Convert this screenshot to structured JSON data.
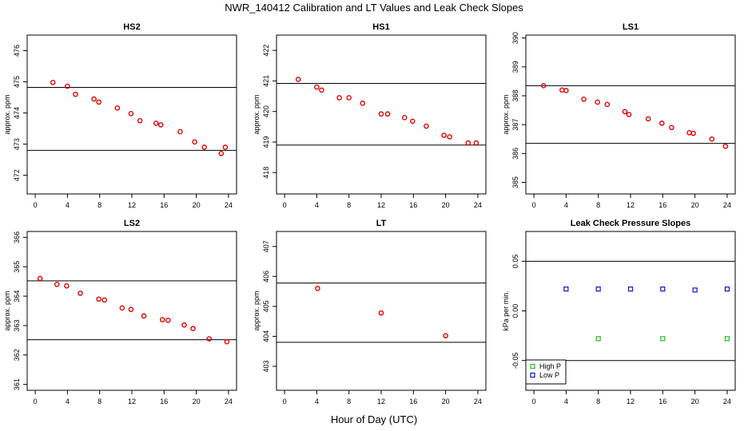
{
  "title": "NWR_140412  Calibration and LT Values and Leak Check Slopes",
  "xlabel": "Hour of Day (UTC)",
  "colors": {
    "calibration_points": "#dd0000",
    "high_p": "#22bb22",
    "low_p": "#1111cc",
    "axis": "#000000"
  },
  "chart_data": [
    {
      "type": "scatter",
      "title": "HS2",
      "ylabel": "approx. ppm",
      "xlim": [
        -1,
        25
      ],
      "xticks": [
        0,
        4,
        8,
        12,
        16,
        20,
        24
      ],
      "ylim": [
        471.4,
        476.5
      ],
      "yticks": [
        472,
        473,
        474,
        475,
        476
      ],
      "hlines": [
        474.82,
        472.8
      ],
      "series": [
        {
          "x": [
            2.2,
            4.0,
            5.0,
            7.3,
            7.9,
            10.2,
            11.9,
            13.0,
            15.0,
            15.6,
            18.0,
            19.8,
            21.0,
            23.1,
            23.6
          ],
          "y": [
            474.98,
            474.86,
            474.6,
            474.45,
            474.35,
            474.16,
            473.98,
            473.75,
            473.67,
            473.62,
            473.4,
            473.07,
            472.9,
            472.7,
            472.9
          ]
        }
      ]
    },
    {
      "type": "scatter",
      "title": "HS1",
      "ylabel": "approx. ppm",
      "xlim": [
        -1,
        25
      ],
      "xticks": [
        0,
        4,
        8,
        12,
        16,
        20,
        24
      ],
      "ylim": [
        417.3,
        422.5
      ],
      "yticks": [
        418,
        419,
        420,
        421,
        422
      ],
      "hlines": [
        420.92,
        418.9
      ],
      "series": [
        {
          "x": [
            1.7,
            4.0,
            4.6,
            6.8,
            8.0,
            9.7,
            12.0,
            12.8,
            14.9,
            15.9,
            17.6,
            19.8,
            20.5,
            22.8,
            23.8
          ],
          "y": [
            421.05,
            420.8,
            420.7,
            420.45,
            420.45,
            420.27,
            419.92,
            419.92,
            419.8,
            419.68,
            419.52,
            419.22,
            419.17,
            418.97,
            418.97
          ]
        }
      ]
    },
    {
      "type": "scatter",
      "title": "LS1",
      "ylabel": "approx. ppm",
      "xlim": [
        -1,
        25
      ],
      "xticks": [
        0,
        4,
        8,
        12,
        16,
        20,
        24
      ],
      "ylim": [
        384.6,
        390.1
      ],
      "yticks": [
        385,
        386,
        387,
        388,
        389,
        390
      ],
      "hlines": [
        388.35,
        386.35
      ],
      "series": [
        {
          "x": [
            1.2,
            3.5,
            4.0,
            6.2,
            7.9,
            9.1,
            11.3,
            11.8,
            14.2,
            15.9,
            17.1,
            19.3,
            19.8,
            22.1,
            23.8
          ],
          "y": [
            388.35,
            388.2,
            388.18,
            387.88,
            387.78,
            387.7,
            387.45,
            387.35,
            387.2,
            387.05,
            386.9,
            386.72,
            386.7,
            386.5,
            386.25
          ]
        }
      ]
    },
    {
      "type": "scatter",
      "title": "LS2",
      "ylabel": "approx. ppm",
      "xlim": [
        -1,
        25
      ],
      "xticks": [
        0,
        4,
        8,
        12,
        16,
        20,
        24
      ],
      "ylim": [
        360.8,
        366.2
      ],
      "yticks": [
        361,
        362,
        363,
        364,
        365,
        366
      ],
      "hlines": [
        364.52,
        362.52
      ],
      "series": [
        {
          "x": [
            0.6,
            2.7,
            3.9,
            5.6,
            7.9,
            8.6,
            10.8,
            11.9,
            13.5,
            15.8,
            16.5,
            18.5,
            19.6,
            21.6,
            23.8
          ],
          "y": [
            364.6,
            364.4,
            364.35,
            364.1,
            363.9,
            363.87,
            363.6,
            363.55,
            363.33,
            363.2,
            363.18,
            363.02,
            362.9,
            362.55,
            362.45
          ]
        }
      ]
    },
    {
      "type": "scatter",
      "title": "LT",
      "ylabel": "approx. ppm",
      "xlim": [
        -1,
        25
      ],
      "xticks": [
        0,
        4,
        8,
        12,
        16,
        20,
        24
      ],
      "ylim": [
        402.2,
        407.5
      ],
      "yticks": [
        403,
        404,
        405,
        406,
        407
      ],
      "hlines": [
        405.78,
        403.8
      ],
      "series": [
        {
          "x": [
            4.1,
            12.0,
            20.0
          ],
          "y": [
            405.6,
            404.78,
            404.02
          ]
        }
      ]
    },
    {
      "type": "scatter",
      "title": "Leak Check Pressure Slopes",
      "ylabel": "kPa per min.",
      "xlim": [
        -1,
        25
      ],
      "xticks": [
        0,
        4,
        8,
        12,
        16,
        20,
        24
      ],
      "ylim": [
        -0.08,
        0.08
      ],
      "yticks": [
        -0.05,
        0.0,
        0.05
      ],
      "ytick_labels": [
        "-0.05",
        "0.00",
        "0.05"
      ],
      "hlines": [
        0.05,
        -0.05
      ],
      "legend": "bottom-left",
      "series": [
        {
          "name": "High P",
          "x": [
            8,
            16,
            24
          ],
          "y": [
            -0.028,
            -0.028,
            -0.028
          ]
        },
        {
          "name": "Low P",
          "x": [
            4,
            8,
            12,
            16,
            20,
            24
          ],
          "y": [
            0.022,
            0.022,
            0.022,
            0.022,
            0.021,
            0.022
          ]
        }
      ]
    }
  ]
}
